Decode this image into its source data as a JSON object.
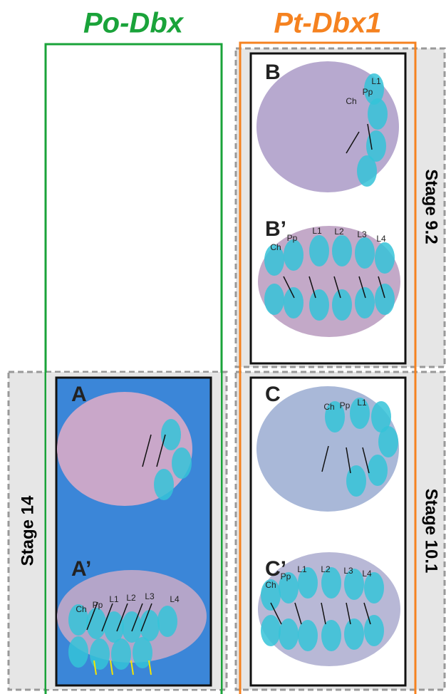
{
  "columns": [
    {
      "title": "Po-Dbx"
    },
    {
      "title": "Pt-Dbx1"
    }
  ],
  "stages": [
    "Stage 9.2",
    "Stage 10.1",
    "Stage 14"
  ],
  "panels": [
    {
      "label": "B",
      "annotations": [
        "Ch",
        "Pp",
        "L1"
      ]
    },
    {
      "label": "B’",
      "annotations": [
        "Ch",
        "Pp",
        "L1",
        "L2",
        "L3",
        "L4"
      ]
    },
    {
      "label": "C",
      "annotations": [
        "Ch",
        "Pp",
        "L1"
      ]
    },
    {
      "label": "C’",
      "annotations": [
        "Ch",
        "Pp",
        "L1",
        "L2",
        "L3",
        "L4"
      ]
    },
    {
      "label": "A",
      "annotations": []
    },
    {
      "label": "A’",
      "annotations": [
        "Ch",
        "Pp",
        "L1",
        "L2",
        "L3",
        "L4"
      ]
    }
  ]
}
